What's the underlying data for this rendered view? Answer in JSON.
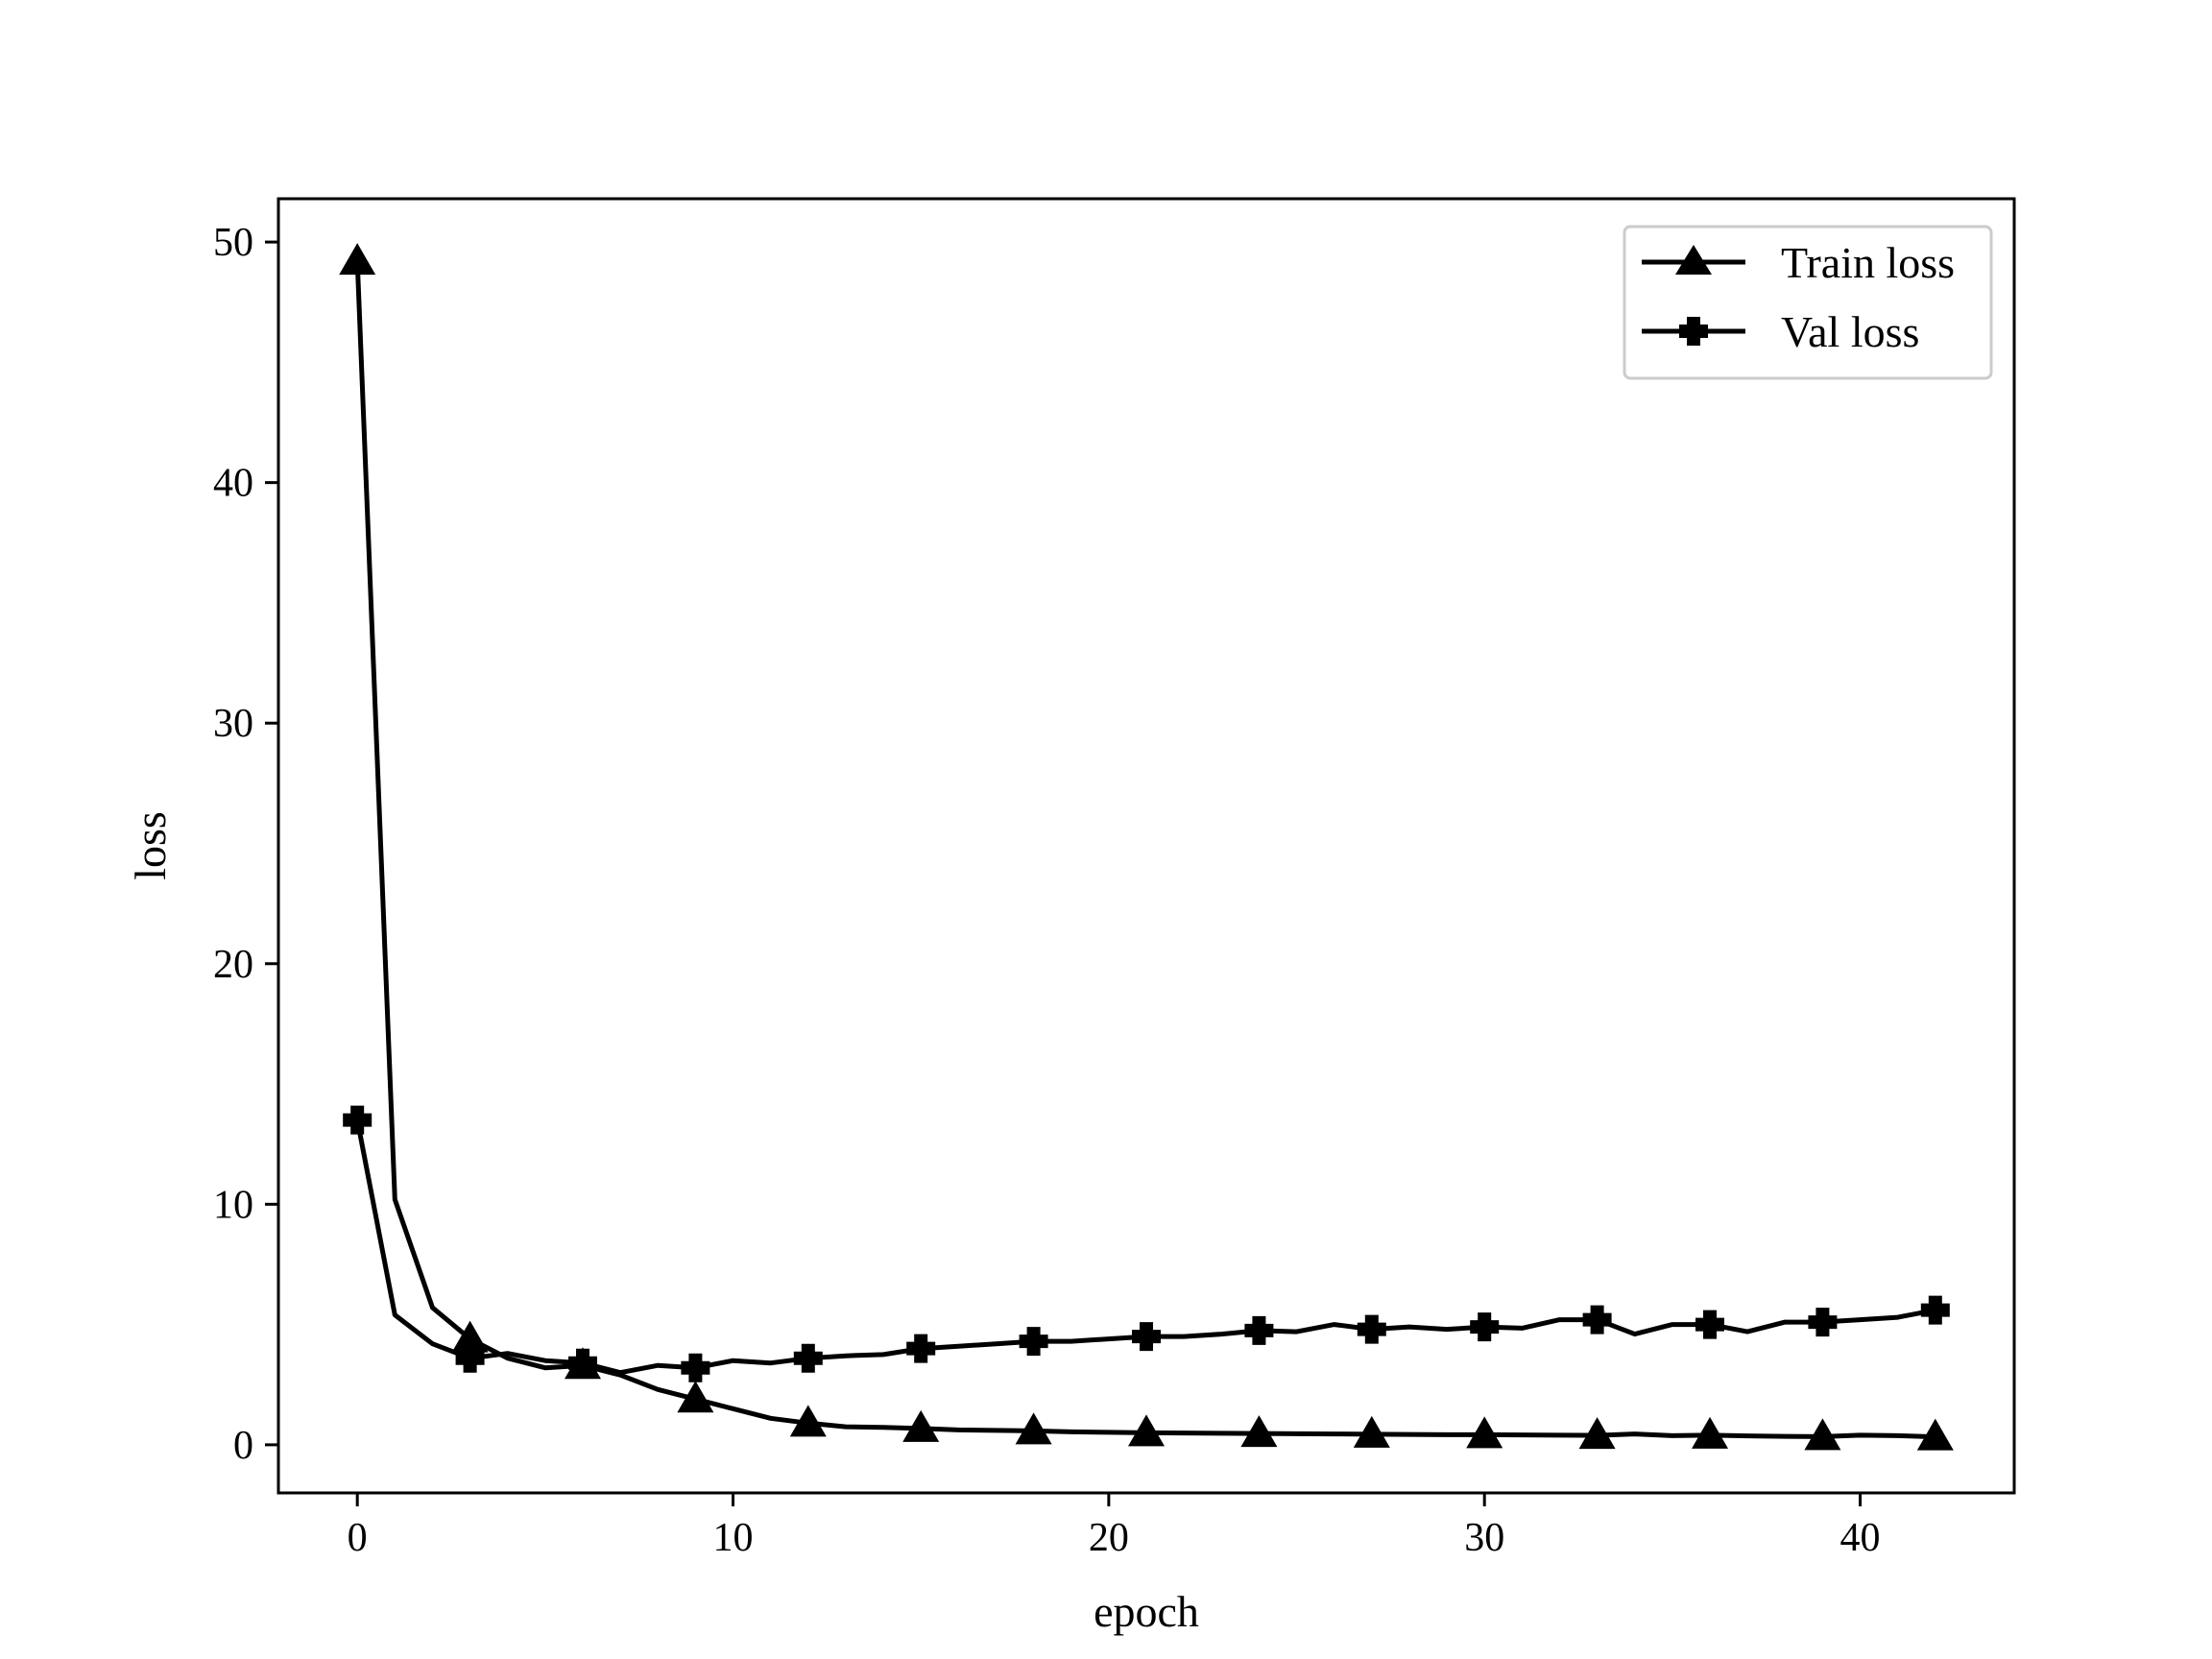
{
  "chart_data": {
    "type": "line",
    "title": "",
    "xlabel": "epoch",
    "ylabel": "loss",
    "xlim": [
      -2.1,
      44.1
    ],
    "ylim": [
      -2.0,
      51.8
    ],
    "xticks": [
      0,
      10,
      20,
      30,
      40
    ],
    "yticks": [
      0,
      10,
      20,
      30,
      40,
      50
    ],
    "grid": false,
    "legend_position": "top-right",
    "x": [
      0,
      1,
      2,
      3,
      4,
      5,
      6,
      7,
      8,
      9,
      10,
      11,
      12,
      13,
      14,
      15,
      16,
      17,
      18,
      19,
      20,
      21,
      22,
      23,
      24,
      25,
      26,
      27,
      28,
      29,
      30,
      31,
      32,
      33,
      34,
      35,
      36,
      37,
      38,
      39,
      40,
      41,
      42
    ],
    "series": [
      {
        "name": "Train loss",
        "marker": "triangle",
        "markevery": 3,
        "color": "#000000",
        "values": [
          49.2,
          10.2,
          5.7,
          4.4,
          3.6,
          3.2,
          3.3,
          2.9,
          2.3,
          1.9,
          1.5,
          1.1,
          0.9,
          0.75,
          0.72,
          0.68,
          0.62,
          0.6,
          0.58,
          0.54,
          0.52,
          0.5,
          0.49,
          0.48,
          0.47,
          0.46,
          0.45,
          0.44,
          0.43,
          0.42,
          0.42,
          0.41,
          0.4,
          0.39,
          0.45,
          0.38,
          0.4,
          0.37,
          0.35,
          0.34,
          0.4,
          0.38,
          0.33
        ]
      },
      {
        "name": "Val loss",
        "marker": "plus",
        "markevery": 3,
        "color": "#000000",
        "values": [
          13.5,
          5.4,
          4.2,
          3.6,
          3.8,
          3.5,
          3.4,
          3.0,
          3.3,
          3.2,
          3.5,
          3.4,
          3.6,
          3.7,
          3.75,
          4.0,
          4.1,
          4.2,
          4.3,
          4.3,
          4.4,
          4.5,
          4.5,
          4.6,
          4.75,
          4.7,
          5.0,
          4.8,
          4.9,
          4.8,
          4.9,
          4.85,
          5.2,
          5.2,
          4.6,
          5.0,
          5.0,
          4.7,
          5.1,
          5.1,
          5.2,
          5.3,
          5.6
        ]
      }
    ]
  }
}
